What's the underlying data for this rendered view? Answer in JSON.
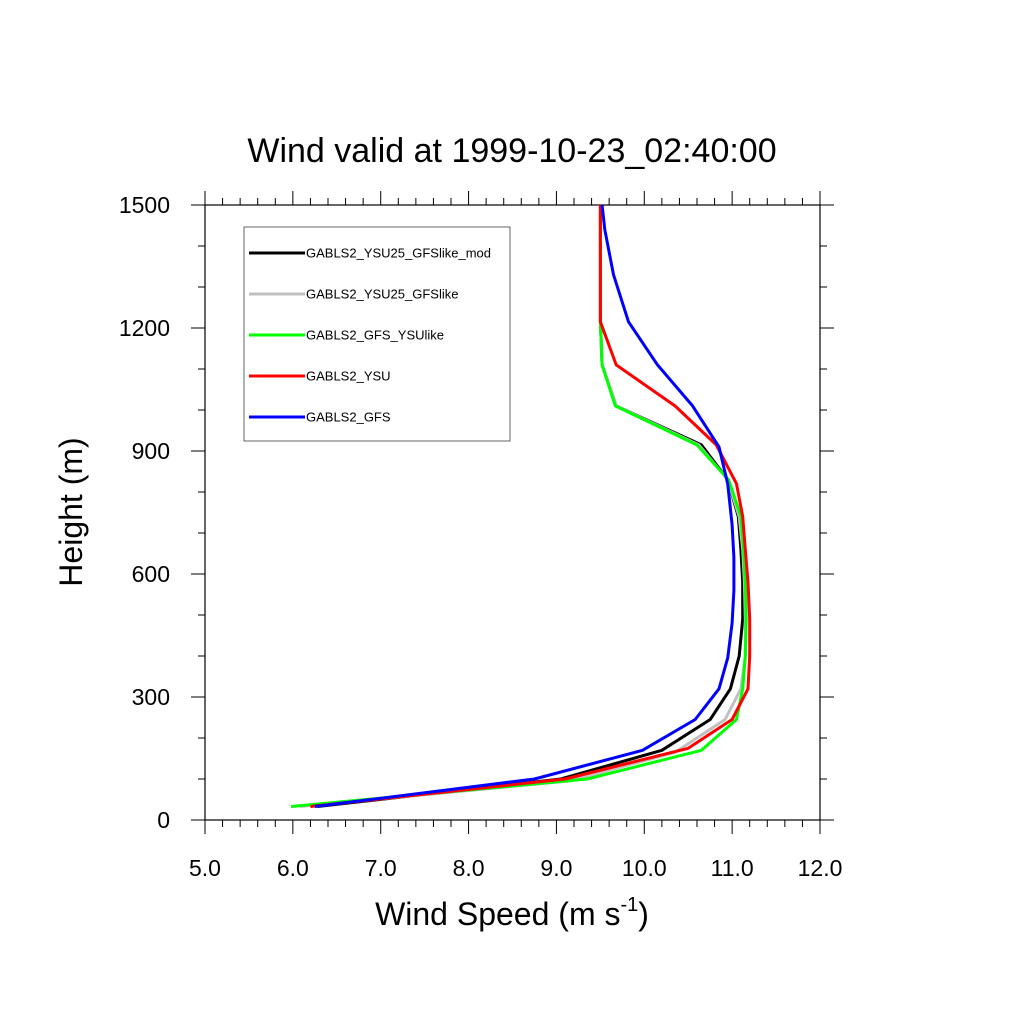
{
  "chart_data": {
    "type": "line",
    "title": "Wind valid at 1999-10-23_02:40:00",
    "xlabel": "Wind Speed (m s",
    "xlabel_sup": "-1",
    "xlabel_close": ")",
    "ylabel": "Height (m)",
    "xlim": [
      5.0,
      12.0
    ],
    "ylim": [
      0,
      1500
    ],
    "xticks": [
      "5.0",
      "6.0",
      "7.0",
      "8.0",
      "9.0",
      "10.0",
      "11.0",
      "12.0"
    ],
    "yticks": [
      "0",
      "300",
      "600",
      "900",
      "1200",
      "1500"
    ],
    "legend_position": "top-left",
    "series": [
      {
        "name": "GABLS2_YSU25_GFSlike_mod",
        "color": "#000000",
        "points": [
          [
            6.28,
            33
          ],
          [
            9.05,
            100
          ],
          [
            10.2,
            170
          ],
          [
            10.75,
            245
          ],
          [
            10.98,
            320
          ],
          [
            11.08,
            400
          ],
          [
            11.12,
            490
          ],
          [
            11.12,
            580
          ],
          [
            11.1,
            660
          ],
          [
            11.07,
            740
          ],
          [
            10.95,
            830
          ],
          [
            10.65,
            915
          ],
          [
            9.68,
            1010
          ],
          [
            9.52,
            1110
          ],
          [
            9.5,
            1215
          ],
          [
            9.5,
            1330
          ],
          [
            9.5,
            1440
          ],
          [
            9.5,
            1500
          ]
        ]
      },
      {
        "name": "GABLS2_YSU25_GFSlike",
        "color": "#c0c0c0",
        "points": [
          [
            6.08,
            33
          ],
          [
            9.15,
            95
          ],
          [
            10.35,
            165
          ],
          [
            10.92,
            245
          ],
          [
            11.1,
            320
          ],
          [
            11.15,
            400
          ],
          [
            11.15,
            490
          ],
          [
            11.14,
            580
          ],
          [
            11.12,
            660
          ],
          [
            11.08,
            740
          ],
          [
            10.95,
            830
          ],
          [
            10.62,
            915
          ],
          [
            9.68,
            1010
          ],
          [
            9.52,
            1110
          ],
          [
            9.5,
            1215
          ],
          [
            9.5,
            1330
          ],
          [
            9.5,
            1440
          ],
          [
            9.5,
            1500
          ]
        ]
      },
      {
        "name": "GABLS2_GFS_YSUlike",
        "color": "#00ff00",
        "points": [
          [
            5.98,
            33
          ],
          [
            9.35,
            100
          ],
          [
            10.65,
            170
          ],
          [
            11.05,
            245
          ],
          [
            11.12,
            320
          ],
          [
            11.15,
            400
          ],
          [
            11.16,
            490
          ],
          [
            11.15,
            580
          ],
          [
            11.13,
            660
          ],
          [
            11.1,
            740
          ],
          [
            10.96,
            830
          ],
          [
            10.6,
            915
          ],
          [
            9.67,
            1010
          ],
          [
            9.52,
            1110
          ],
          [
            9.5,
            1215
          ],
          [
            9.5,
            1330
          ],
          [
            9.5,
            1440
          ],
          [
            9.5,
            1500
          ]
        ]
      },
      {
        "name": "GABLS2_YSU",
        "color": "#ff0000",
        "points": [
          [
            6.2,
            33
          ],
          [
            9.1,
            100
          ],
          [
            10.5,
            175
          ],
          [
            11.0,
            245
          ],
          [
            11.18,
            320
          ],
          [
            11.2,
            400
          ],
          [
            11.2,
            490
          ],
          [
            11.18,
            580
          ],
          [
            11.15,
            660
          ],
          [
            11.12,
            740
          ],
          [
            11.05,
            820
          ],
          [
            10.82,
            915
          ],
          [
            10.35,
            1010
          ],
          [
            9.68,
            1110
          ],
          [
            9.5,
            1215
          ],
          [
            9.5,
            1330
          ],
          [
            9.5,
            1440
          ],
          [
            9.5,
            1500
          ]
        ]
      },
      {
        "name": "GABLS2_GFS",
        "color": "#0000ff",
        "points": [
          [
            6.25,
            33
          ],
          [
            8.75,
            100
          ],
          [
            9.98,
            170
          ],
          [
            10.58,
            245
          ],
          [
            10.85,
            320
          ],
          [
            10.95,
            395
          ],
          [
            11.0,
            480
          ],
          [
            11.02,
            560
          ],
          [
            11.02,
            640
          ],
          [
            11.0,
            720
          ],
          [
            10.95,
            820
          ],
          [
            10.85,
            910
          ],
          [
            10.55,
            1010
          ],
          [
            10.15,
            1110
          ],
          [
            9.82,
            1215
          ],
          [
            9.65,
            1330
          ],
          [
            9.55,
            1440
          ],
          [
            9.52,
            1500
          ]
        ]
      }
    ]
  }
}
